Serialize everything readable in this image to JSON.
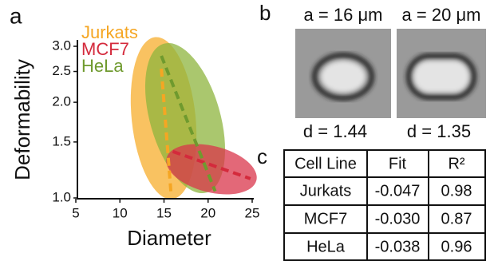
{
  "panels": {
    "a": "a",
    "b": "b",
    "c": "c"
  },
  "chart_data": {
    "type": "line",
    "xlabel": "Diameter",
    "ylabel": "Deformability",
    "xlim": [
      5,
      25
    ],
    "ylim": [
      1,
      3
    ],
    "log_y": true,
    "xticks": [
      5,
      10,
      15,
      20,
      25
    ],
    "yticks": [
      {
        "value": 1,
        "label": "1.0"
      },
      {
        "value": 1.5,
        "label": "1.5"
      },
      {
        "value": 2,
        "label": "2.0"
      },
      {
        "value": 2.5,
        "label": "2.5"
      },
      {
        "value": 3,
        "label": "3.0"
      }
    ],
    "series": [
      {
        "name": "Jurkats",
        "color": "#f5a623",
        "x": [
          14.7,
          15.8
        ],
        "values": [
          2.55,
          1.03
        ]
      },
      {
        "name": "MCF7",
        "color": "#d42a3c",
        "x": [
          16,
          24.8
        ],
        "values": [
          1.4,
          1.15
        ]
      },
      {
        "name": "HeLa",
        "color": "#6f9a2e",
        "x": [
          14.7,
          20.8
        ],
        "values": [
          2.8,
          1.05
        ]
      }
    ]
  },
  "images": [
    {
      "size_label": "a = 16 μm",
      "d_label": "d = 1.44"
    },
    {
      "size_label": "a = 20 μm",
      "d_label": "d = 1.35"
    }
  ],
  "table": {
    "header": [
      "Cell Line",
      "Fit",
      "R²"
    ],
    "rows": [
      [
        "Jurkats",
        "-0.047",
        "0.98"
      ],
      [
        "MCF7",
        "-0.030",
        "0.87"
      ],
      [
        "HeLa",
        "-0.038",
        "0.96"
      ]
    ]
  }
}
